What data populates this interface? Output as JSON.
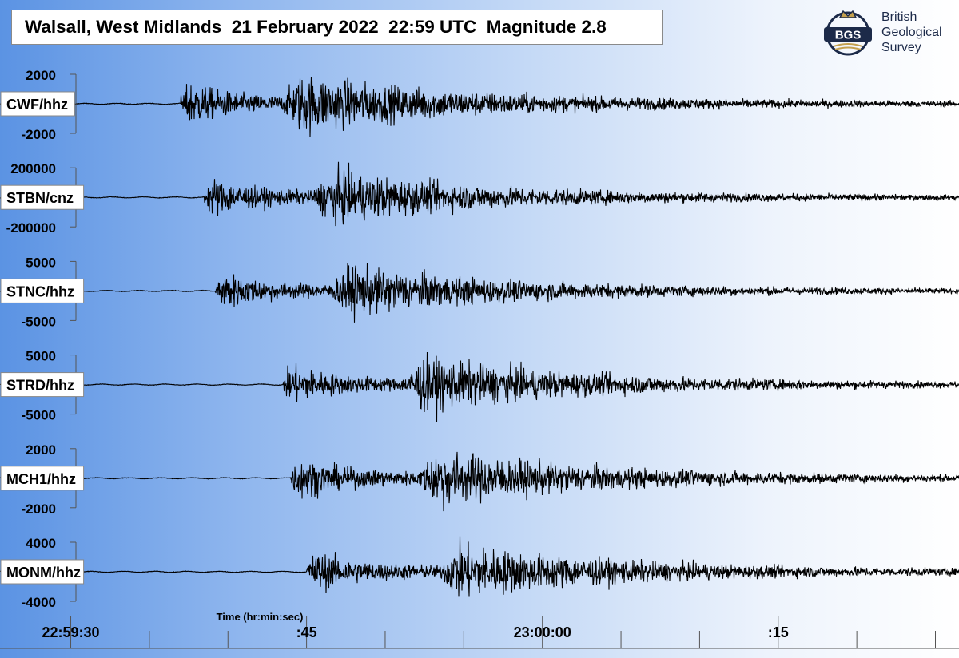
{
  "title": "Walsall, West Midlands  21 February 2022  22:59 UTC  Magnitude 2.8",
  "logo": {
    "monogram": "BGS",
    "line1": "British",
    "line2": "Geological",
    "line3": "Survey",
    "color": "#1c2a49",
    "accent": "#c3a04f"
  },
  "chart_data": {
    "type": "line",
    "title": "Walsall, West Midlands  21 February 2022  22:59 UTC  Magnitude 2.8",
    "xlabel": "Time (hr:min:sec)",
    "x_ticks": [
      {
        "t": 30,
        "label": "22:59:30"
      },
      {
        "t": 45,
        "label": ":45"
      },
      {
        "t": 60,
        "label": "23:00:00"
      },
      {
        "t": 75,
        "label": ":15"
      }
    ],
    "x_range_seconds_after_22_59_00": [
      25.5,
      86.5
    ],
    "series": [
      {
        "name": "CWF/hhz",
        "ylim": [
          -2000,
          2000
        ],
        "ticks": [
          "2000",
          "-2000"
        ],
        "onset_t": 37.0,
        "peak": 2400
      },
      {
        "name": "STBN/cnz",
        "ylim": [
          -200000,
          200000
        ],
        "ticks": [
          "200000",
          "-200000"
        ],
        "onset_t": 38.5,
        "peak": 210000
      },
      {
        "name": "STNC/hhz",
        "ylim": [
          -5000,
          5000
        ],
        "ticks": [
          "5000",
          "-5000"
        ],
        "onset_t": 39.2,
        "peak": 5100
      },
      {
        "name": "STRD/hhz",
        "ylim": [
          -5000,
          5000
        ],
        "ticks": [
          "5000",
          "-5000"
        ],
        "onset_t": 43.5,
        "peak": 5500
      },
      {
        "name": "MCH1/hhz",
        "ylim": [
          -2000,
          2000
        ],
        "ticks": [
          "2000",
          "-2000"
        ],
        "onset_t": 44.0,
        "peak": 2300
      },
      {
        "name": "MONM/hhz",
        "ylim": [
          -4000,
          4000
        ],
        "ticks": [
          "4000",
          "-4000"
        ],
        "onset_t": 45.0,
        "peak": 4500
      }
    ],
    "legend": "none",
    "grid": false
  }
}
